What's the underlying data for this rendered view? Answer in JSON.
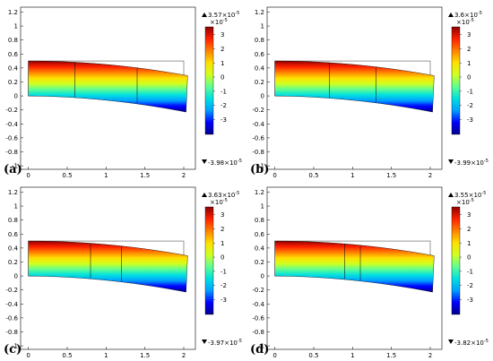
{
  "chart_data": [
    {
      "panel_label": "(a)",
      "type": "heatmap",
      "xlim": [
        -0.1,
        2.15
      ],
      "ylim": [
        -1.05,
        1.27
      ],
      "x_ticks": [
        "0",
        "0.5",
        "1",
        "1.5",
        "2"
      ],
      "y_ticks": [
        "1.2",
        "1",
        "0.8",
        "0.6",
        "0.4",
        "0.2",
        "0",
        "-0.2",
        "-0.4",
        "-0.6",
        "-0.8",
        "-1"
      ],
      "colorbar_ticks": [
        "3",
        "2",
        "1",
        "0",
        "-1",
        "-2",
        "-3"
      ],
      "colorbar_scale": "×10",
      "colorbar_scale_exp": "-5",
      "max_label": "3.57×10",
      "max_exp": "-5",
      "min_label": "-3.98×10",
      "min_exp": "-5",
      "element_boundaries_x": [
        0.6,
        1.4
      ]
    },
    {
      "panel_label": "(b)",
      "type": "heatmap",
      "xlim": [
        -0.1,
        2.15
      ],
      "ylim": [
        -1.05,
        1.27
      ],
      "x_ticks": [
        "0",
        "0.5",
        "1",
        "1.5",
        "2"
      ],
      "y_ticks": [
        "1.2",
        "1",
        "0.8",
        "0.6",
        "0.4",
        "0.2",
        "0",
        "-0.2",
        "-0.4",
        "-0.6",
        "-0.8",
        "-1"
      ],
      "colorbar_ticks": [
        "3",
        "2",
        "1",
        "0",
        "-1",
        "-2",
        "-3"
      ],
      "colorbar_scale": "×10",
      "colorbar_scale_exp": "-5",
      "max_label": "3.6×10",
      "max_exp": "-5",
      "min_label": "-3.99×10",
      "min_exp": "-5",
      "element_boundaries_x": [
        0.7,
        1.3
      ]
    },
    {
      "panel_label": "(c)",
      "type": "heatmap",
      "xlim": [
        -0.1,
        2.15
      ],
      "ylim": [
        -1.05,
        1.27
      ],
      "x_ticks": [
        "0",
        "0.5",
        "1",
        "1.5",
        "2"
      ],
      "y_ticks": [
        "1.2",
        "1",
        "0.8",
        "0.6",
        "0.4",
        "0.2",
        "0",
        "-0.2",
        "-0.4",
        "-0.6",
        "-0.8",
        "-1"
      ],
      "colorbar_ticks": [
        "3",
        "2",
        "1",
        "0",
        "-1",
        "-2",
        "-3"
      ],
      "colorbar_scale": "×10",
      "colorbar_scale_exp": "-5",
      "max_label": "3.63×10",
      "max_exp": "-5",
      "min_label": "-3.97×10",
      "min_exp": "-5",
      "element_boundaries_x": [
        0.8,
        1.2
      ]
    },
    {
      "panel_label": "(d)",
      "type": "heatmap",
      "xlim": [
        -0.1,
        2.15
      ],
      "ylim": [
        -1.05,
        1.27
      ],
      "x_ticks": [
        "0",
        "0.5",
        "1",
        "1.5",
        "2"
      ],
      "y_ticks": [
        "1.2",
        "1",
        "0.8",
        "0.6",
        "0.4",
        "0.2",
        "0",
        "-0.2",
        "-0.4",
        "-0.6",
        "-0.8",
        "-1"
      ],
      "colorbar_ticks": [
        "3",
        "2",
        "1",
        "0",
        "-1",
        "-2",
        "-3"
      ],
      "colorbar_scale": "×10",
      "colorbar_scale_exp": "-5",
      "max_label": "3.55×10",
      "max_exp": "-5",
      "min_label": "-3.82×10",
      "min_exp": "-5",
      "element_boundaries_x": [
        0.9,
        1.1
      ]
    }
  ],
  "colormap": [
    "#00008f",
    "#0000ff",
    "#00a0ff",
    "#00e0e0",
    "#60ff90",
    "#d0ff20",
    "#ffe000",
    "#ff8000",
    "#ff2000",
    "#900000"
  ],
  "outline_color": "#000000",
  "undeformed_color": "#555555"
}
